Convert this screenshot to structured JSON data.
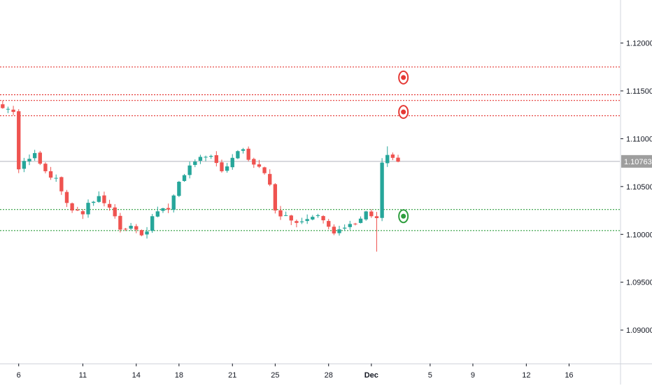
{
  "colors": {
    "background": "#ffffff",
    "up": "#26a69a",
    "down": "#ef5350",
    "resistance": "#e53935",
    "support": "#2e9e3e",
    "price_line": "#b2b5be",
    "price_label_bg": "#9e9e9e",
    "axis_text": "#131722",
    "axis_line": "#d1d4dc",
    "tick_mark": "#131722"
  },
  "icons": {
    "sell_marker": "target-circle-icon-red",
    "buy_marker": "target-circle-icon-green"
  },
  "chart_data": {
    "type": "candlestick",
    "grid": false,
    "ylim": [
      1.0865,
      1.1245
    ],
    "y_ticks": [
      "1.12000",
      "1.11500",
      "1.11000",
      "1.10500",
      "1.10000",
      "1.09500",
      "1.09000"
    ],
    "y_tick_values": [
      1.12,
      1.115,
      1.11,
      1.105,
      1.1,
      1.095,
      1.09
    ],
    "x_ticks": [
      "6",
      "11",
      "14",
      "18",
      "21",
      "25",
      "28",
      "Dec",
      "5",
      "9",
      "12",
      "16"
    ],
    "x_tick_bars": [
      3,
      15,
      25,
      33,
      43,
      51,
      61,
      69,
      80,
      88,
      98,
      106
    ],
    "bars_shown": 116,
    "last_price": "1.10763",
    "last_price_value": 1.10763,
    "resistance_levels": [
      1.1175,
      1.1146,
      1.114,
      1.1124
    ],
    "support_levels": [
      1.1026,
      1.1004
    ],
    "markers": [
      {
        "kind": "sell",
        "bar": 73,
        "price": 1.1164
      },
      {
        "kind": "sell",
        "bar": 73,
        "price": 1.1128
      },
      {
        "kind": "buy",
        "bar": 73,
        "price": 1.1019
      }
    ],
    "anchors": [
      [
        0,
        1.1132
      ],
      [
        2,
        1.1128
      ],
      [
        3,
        1.1068
      ],
      [
        5,
        1.1079
      ],
      [
        6,
        1.1085
      ],
      [
        8,
        1.1066
      ],
      [
        10,
        1.1059
      ],
      [
        11,
        1.1045
      ],
      [
        13,
        1.1025
      ],
      [
        15,
        1.1021
      ],
      [
        16,
        1.1033
      ],
      [
        18,
        1.104
      ],
      [
        20,
        1.1028
      ],
      [
        22,
        1.1005
      ],
      [
        24,
        1.1009
      ],
      [
        26,
        1.0999
      ],
      [
        27,
        1.1003
      ],
      [
        28,
        1.1019
      ],
      [
        31,
        1.1026
      ],
      [
        33,
        1.1055
      ],
      [
        35,
        1.1072
      ],
      [
        37,
        1.1081
      ],
      [
        39,
        1.1082
      ],
      [
        41,
        1.1066
      ],
      [
        43,
        1.108
      ],
      [
        45,
        1.1089
      ],
      [
        47,
        1.1073
      ],
      [
        49,
        1.1064
      ],
      [
        50,
        1.1052
      ],
      [
        51,
        1.1025
      ],
      [
        53,
        1.102
      ],
      [
        55,
        1.1012
      ],
      [
        57,
        1.1016
      ],
      [
        59,
        1.102
      ],
      [
        61,
        1.1008
      ],
      [
        62,
        1.1001
      ],
      [
        64,
        1.1007
      ],
      [
        66,
        1.1011
      ],
      [
        68,
        1.1024
      ],
      [
        69,
        1.1019
      ],
      [
        70,
        1.1017
      ],
      [
        71,
        1.1075
      ],
      [
        72,
        1.1083
      ],
      [
        73,
        1.108
      ],
      [
        74,
        1.1076
      ]
    ],
    "range_pct": 0.0006,
    "seed": 11
  }
}
